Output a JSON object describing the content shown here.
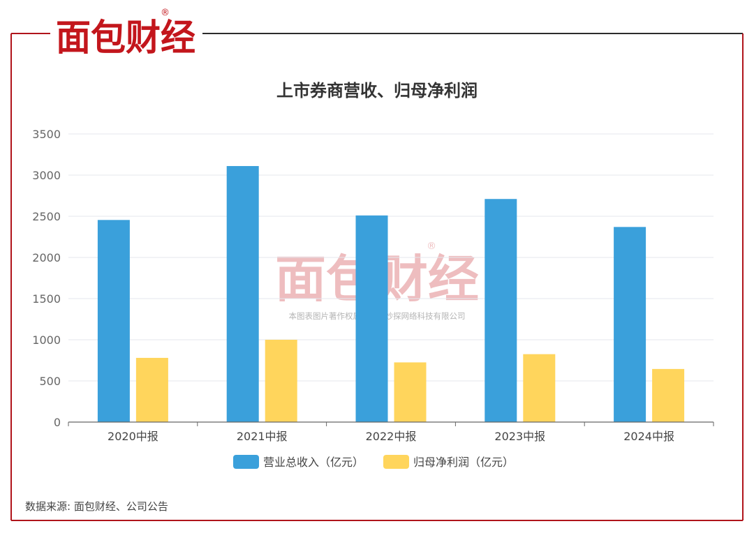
{
  "brand": {
    "logo_text": "面包财经",
    "registered": "®",
    "watermark_text": "面包财经",
    "watermark_caption": "本图表图片著作权属于上海妙探网络科技有限公司"
  },
  "source_note": "数据来源: 面包财经、公司公告",
  "colors": {
    "frame": "#b0141b",
    "frame_dark": "#2b2b2b",
    "logo": "#c3161c",
    "revenue": "#3aa0db",
    "profit": "#ffd55c",
    "grid": "#e4e7ee",
    "axis": "#666666"
  },
  "chart_data": {
    "type": "bar",
    "title": "上市券商营收、归母净利润",
    "categories": [
      "2020中报",
      "2021中报",
      "2022中报",
      "2023中报",
      "2024中报"
    ],
    "series": [
      {
        "name": "营业总收入（亿元）",
        "values": [
          2455,
          3110,
          2510,
          2710,
          2370
        ]
      },
      {
        "name": "归母净利润（亿元）",
        "values": [
          780,
          1000,
          725,
          825,
          645
        ]
      }
    ],
    "ylim": [
      0,
      3500
    ],
    "yticks": [
      0,
      500,
      1000,
      1500,
      2000,
      2500,
      3000,
      3500
    ],
    "legend_position": "bottom-center",
    "grid": true
  }
}
